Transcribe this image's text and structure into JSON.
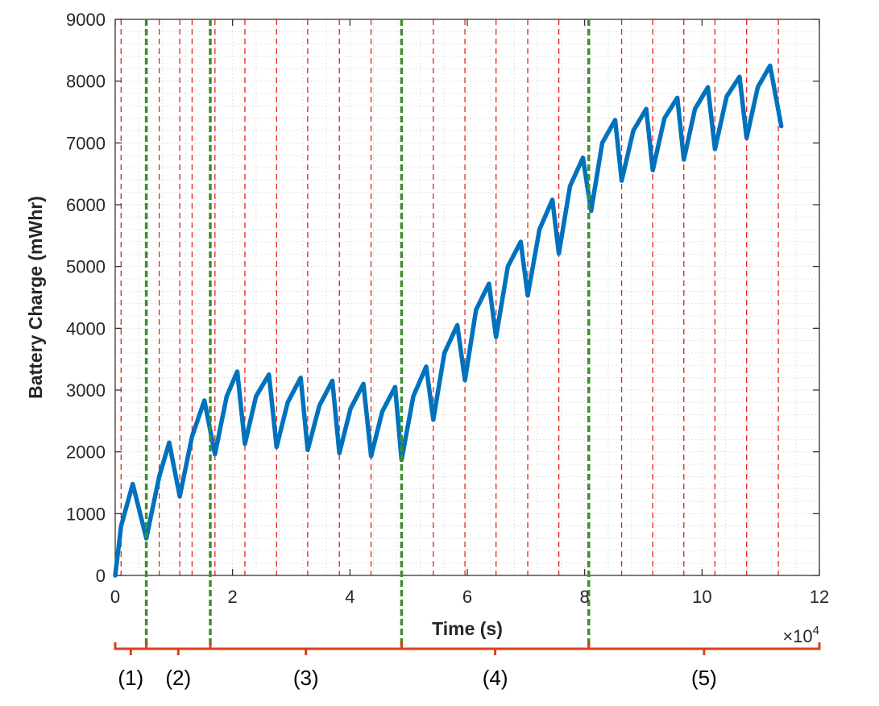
{
  "chart_data": {
    "type": "line",
    "title": "",
    "xlabel": "Time (s)",
    "ylabel": "Battery Charge (mWhr)",
    "x_exponent_label": "×10",
    "x_exponent_power": "4",
    "xlim": [
      0,
      120000
    ],
    "ylim": [
      0,
      9000
    ],
    "x_ticks": [
      0,
      20000,
      40000,
      60000,
      80000,
      100000,
      120000
    ],
    "x_tick_labels": [
      "0",
      "2",
      "4",
      "6",
      "8",
      "10",
      "12"
    ],
    "y_ticks": [
      0,
      1000,
      2000,
      3000,
      4000,
      5000,
      6000,
      7000,
      8000,
      9000
    ],
    "y_tick_labels": [
      "0",
      "1000",
      "2000",
      "3000",
      "4000",
      "5000",
      "6000",
      "7000",
      "8000",
      "9000"
    ],
    "grid": true,
    "series": [
      {
        "color": "#0072BD",
        "x": [
          0,
          1000,
          3000,
          5300,
          7500,
          9200,
          11000,
          13100,
          15200,
          17000,
          19000,
          20800,
          22100,
          24000,
          26200,
          27500,
          29400,
          31600,
          32800,
          34800,
          37000,
          38200,
          40100,
          42300,
          43600,
          45500,
          47700,
          48800,
          50800,
          53000,
          54200,
          56100,
          58300,
          59600,
          61500,
          63700,
          64900,
          66900,
          69100,
          70300,
          72300,
          74500,
          75600,
          77500,
          79700,
          81100,
          83000,
          85200,
          86300,
          88300,
          90500,
          91600,
          93600,
          95800,
          96900,
          98800,
          101000,
          102200,
          104200,
          106400,
          107600,
          109500,
          111600,
          113500
        ],
        "y": [
          0,
          800,
          1480,
          600,
          1600,
          2150,
          1280,
          2250,
          2830,
          1960,
          2900,
          3300,
          2130,
          2900,
          3250,
          2080,
          2800,
          3200,
          2030,
          2750,
          3150,
          1980,
          2700,
          3100,
          1930,
          2650,
          3050,
          1870,
          2900,
          3380,
          2520,
          3600,
          4050,
          3160,
          4300,
          4720,
          3860,
          5000,
          5400,
          4530,
          5600,
          6080,
          5210,
          6300,
          6760,
          5900,
          7000,
          7370,
          6390,
          7200,
          7550,
          6560,
          7400,
          7730,
          6730,
          7550,
          7900,
          6900,
          7750,
          8070,
          7080,
          7900,
          8250,
          7270
        ]
      }
    ],
    "phase_boundaries": [
      5300,
      16200,
      48800,
      80700
    ],
    "event_lines": [
      1000,
      5300,
      7500,
      11000,
      13100,
      16200,
      17000,
      22100,
      27500,
      32800,
      38200,
      43600,
      48800,
      54200,
      59600,
      64900,
      70300,
      75600,
      80700,
      86300,
      91600,
      96900,
      102200,
      107600,
      113000
    ],
    "phases": [
      {
        "label": "(1)",
        "start": 0,
        "end": 5300
      },
      {
        "label": "(2)",
        "start": 5300,
        "end": 16200
      },
      {
        "label": "(3)",
        "start": 16200,
        "end": 48800
      },
      {
        "label": "(4)",
        "start": 48800,
        "end": 80700
      },
      {
        "label": "(5)",
        "start": 80700,
        "end": 120000
      }
    ],
    "colors": {
      "series": "#0072BD",
      "event_lines": "#E8211C",
      "phase_boundaries": "#3E8E2F",
      "braces": "#D9401A",
      "grid": "#DCDCDC",
      "axes": "#262626"
    }
  }
}
